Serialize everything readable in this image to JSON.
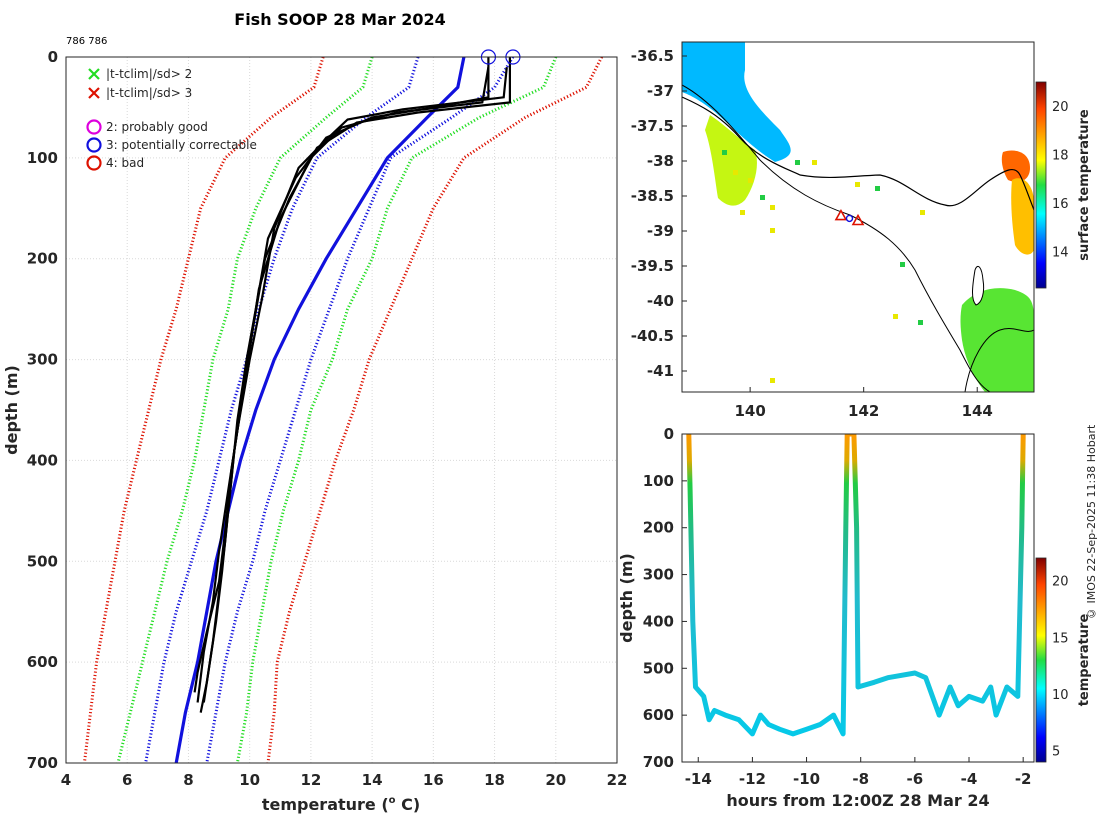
{
  "title": "Fish SOOP 28 Mar 2024",
  "id_label": "786 786",
  "credit": "© IMOS 22-Sep-2025 11:38 Hobart",
  "colors": {
    "green": "#22dd22",
    "red": "#dd1100",
    "blue": "#1111dd",
    "black": "#000000",
    "magenta": "#dd00dd",
    "land_outline": "#000000"
  },
  "chart_data": [
    {
      "type": "line",
      "name": "profile-chart",
      "xlabel": "temperature (",
      "xlabel_sup": "o",
      "xlabel_tail": " C)",
      "ylabel": "depth (m)",
      "xlim": [
        4,
        22
      ],
      "ylim": [
        0,
        700
      ],
      "y_reversed": true,
      "xticks": [
        4,
        6,
        8,
        10,
        12,
        14,
        16,
        18,
        20,
        22
      ],
      "yticks": [
        0,
        100,
        200,
        300,
        400,
        500,
        600,
        700
      ],
      "grid": true,
      "legend_position": "top-left",
      "legend": [
        {
          "marker": "x",
          "color": "#22dd22",
          "label": "|t-tclim|/sd> 2"
        },
        {
          "marker": "x",
          "color": "#dd1100",
          "label": "|t-tclim|/sd> 3"
        },
        {
          "marker": "o",
          "color": "#dd00dd",
          "label": "2: probably good"
        },
        {
          "marker": "o",
          "color": "#1111dd",
          "label": "3: potentially correctable"
        },
        {
          "marker": "o",
          "color": "#dd1100",
          "label": "4: bad"
        }
      ],
      "series": [
        {
          "name": "climatology-mean",
          "style": "solid",
          "color": "#1111dd",
          "points": [
            [
              17.0,
              0
            ],
            [
              16.8,
              30
            ],
            [
              15.8,
              60
            ],
            [
              14.5,
              100
            ],
            [
              13.5,
              150
            ],
            [
              12.5,
              200
            ],
            [
              11.6,
              250
            ],
            [
              10.8,
              300
            ],
            [
              10.2,
              350
            ],
            [
              9.7,
              400
            ],
            [
              9.3,
              450
            ],
            [
              8.9,
              500
            ],
            [
              8.6,
              550
            ],
            [
              8.3,
              600
            ],
            [
              7.9,
              650
            ],
            [
              7.6,
              700
            ]
          ]
        },
        {
          "name": "clim-plus-2sd",
          "style": "dotted",
          "color": "#22dd22",
          "points": [
            [
              20.0,
              0
            ],
            [
              19.6,
              30
            ],
            [
              17.5,
              60
            ],
            [
              15.3,
              100
            ],
            [
              14.5,
              150
            ],
            [
              14.0,
              200
            ],
            [
              13.2,
              250
            ],
            [
              12.7,
              300
            ],
            [
              12.0,
              350
            ],
            [
              11.6,
              400
            ],
            [
              11.1,
              450
            ],
            [
              10.7,
              500
            ],
            [
              10.4,
              550
            ],
            [
              10.1,
              600
            ],
            [
              9.9,
              650
            ],
            [
              9.6,
              700
            ]
          ]
        },
        {
          "name": "clim-minus-2sd",
          "style": "dotted",
          "color": "#22dd22",
          "points": [
            [
              14.0,
              0
            ],
            [
              13.7,
              30
            ],
            [
              12.5,
              60
            ],
            [
              11.0,
              100
            ],
            [
              10.2,
              150
            ],
            [
              9.6,
              200
            ],
            [
              9.3,
              250
            ],
            [
              8.8,
              300
            ],
            [
              8.5,
              350
            ],
            [
              8.2,
              400
            ],
            [
              7.8,
              450
            ],
            [
              7.3,
              500
            ],
            [
              6.9,
              550
            ],
            [
              6.5,
              600
            ],
            [
              6.1,
              650
            ],
            [
              5.7,
              700
            ]
          ]
        },
        {
          "name": "clim-plus-3sd",
          "style": "dotted",
          "color": "#dd1100",
          "points": [
            [
              21.5,
              0
            ],
            [
              21.0,
              30
            ],
            [
              19.0,
              60
            ],
            [
              17.0,
              100
            ],
            [
              16.0,
              150
            ],
            [
              15.3,
              200
            ],
            [
              14.6,
              250
            ],
            [
              13.9,
              300
            ],
            [
              13.4,
              350
            ],
            [
              12.8,
              400
            ],
            [
              12.3,
              450
            ],
            [
              11.8,
              500
            ],
            [
              11.3,
              550
            ],
            [
              10.9,
              600
            ],
            [
              10.8,
              650
            ],
            [
              10.6,
              700
            ]
          ]
        },
        {
          "name": "clim-minus-3sd",
          "style": "dotted",
          "color": "#dd1100",
          "points": [
            [
              12.4,
              0
            ],
            [
              12.1,
              30
            ],
            [
              10.7,
              60
            ],
            [
              9.2,
              100
            ],
            [
              8.4,
              150
            ],
            [
              8.0,
              200
            ],
            [
              7.6,
              250
            ],
            [
              7.1,
              300
            ],
            [
              6.7,
              350
            ],
            [
              6.3,
              400
            ],
            [
              5.9,
              450
            ],
            [
              5.6,
              500
            ],
            [
              5.3,
              550
            ],
            [
              5.0,
              600
            ],
            [
              4.8,
              650
            ],
            [
              4.6,
              700
            ]
          ]
        },
        {
          "name": "clim-plus-1sd",
          "style": "dotted",
          "color": "#1111dd",
          "points": [
            [
              18.6,
              0
            ],
            [
              18.0,
              30
            ],
            [
              16.6,
              60
            ],
            [
              14.6,
              100
            ],
            [
              13.9,
              150
            ],
            [
              13.2,
              200
            ],
            [
              12.6,
              250
            ],
            [
              12.0,
              300
            ],
            [
              11.5,
              350
            ],
            [
              11.0,
              400
            ],
            [
              10.5,
              450
            ],
            [
              10.1,
              500
            ],
            [
              9.6,
              550
            ],
            [
              9.2,
              600
            ],
            [
              8.9,
              650
            ],
            [
              8.6,
              700
            ]
          ]
        },
        {
          "name": "clim-minus-1sd",
          "style": "dotted",
          "color": "#1111dd",
          "points": [
            [
              15.5,
              0
            ],
            [
              15.2,
              30
            ],
            [
              13.8,
              60
            ],
            [
              12.2,
              100
            ],
            [
              11.4,
              150
            ],
            [
              10.8,
              200
            ],
            [
              10.3,
              250
            ],
            [
              9.9,
              300
            ],
            [
              9.4,
              350
            ],
            [
              9.0,
              400
            ],
            [
              8.6,
              450
            ],
            [
              8.1,
              500
            ],
            [
              7.6,
              550
            ],
            [
              7.2,
              600
            ],
            [
              6.9,
              650
            ],
            [
              6.6,
              700
            ]
          ]
        }
      ],
      "profiles": [
        {
          "name": "profile-1",
          "color": "#000000",
          "points": [
            [
              17.8,
              0
            ],
            [
              17.8,
              40
            ],
            [
              16.0,
              50
            ],
            [
              14.0,
              60
            ],
            [
              12.5,
              80
            ],
            [
              11.5,
              120
            ],
            [
              10.6,
              180
            ],
            [
              10.2,
              250
            ],
            [
              9.9,
              300
            ],
            [
              9.6,
              360
            ],
            [
              9.4,
              420
            ],
            [
              9.2,
              480
            ],
            [
              9.0,
              530
            ],
            [
              8.8,
              580
            ],
            [
              8.6,
              620
            ],
            [
              8.4,
              650
            ]
          ]
        },
        {
          "name": "profile-2",
          "color": "#000000",
          "points": [
            [
              18.5,
              0
            ],
            [
              18.5,
              45
            ],
            [
              15.5,
              55
            ],
            [
              13.5,
              65
            ],
            [
              12.2,
              90
            ],
            [
              11.3,
              140
            ],
            [
              10.5,
              200
            ],
            [
              10.1,
              270
            ],
            [
              9.8,
              330
            ],
            [
              9.5,
              390
            ],
            [
              9.3,
              450
            ],
            [
              9.1,
              510
            ],
            [
              8.9,
              560
            ],
            [
              8.7,
              600
            ],
            [
              8.5,
              640
            ]
          ]
        },
        {
          "name": "profile-3",
          "color": "#000000",
          "points": [
            [
              17.8,
              10
            ],
            [
              17.6,
              45
            ],
            [
              14.8,
              55
            ],
            [
              13.0,
              70
            ],
            [
              12.0,
              100
            ],
            [
              11.0,
              160
            ],
            [
              10.3,
              230
            ],
            [
              10.0,
              290
            ],
            [
              9.7,
              350
            ],
            [
              9.4,
              410
            ],
            [
              9.2,
              470
            ],
            [
              9.0,
              520
            ],
            [
              8.6,
              570
            ],
            [
              8.3,
              610
            ],
            [
              8.2,
              630
            ]
          ]
        },
        {
          "name": "profile-4",
          "color": "#000000",
          "points": [
            [
              18.4,
              10
            ],
            [
              18.3,
              40
            ],
            [
              15.0,
              52
            ],
            [
              13.2,
              62
            ],
            [
              12.4,
              85
            ],
            [
              11.6,
              110
            ],
            [
              10.8,
              170
            ],
            [
              10.4,
              240
            ],
            [
              10.0,
              300
            ],
            [
              9.6,
              370
            ],
            [
              9.3,
              430
            ],
            [
              9.0,
              490
            ],
            [
              8.8,
              540
            ],
            [
              8.5,
              590
            ],
            [
              8.3,
              640
            ]
          ]
        }
      ],
      "surface_markers": [
        {
          "x": 17.8,
          "y": 0,
          "color": "#1111dd"
        },
        {
          "x": 18.6,
          "y": 0,
          "color": "#1111dd"
        }
      ]
    },
    {
      "type": "heatmap",
      "name": "map-chart",
      "colorbar_label": "surface temperature",
      "xlim": [
        138.8,
        145.0
      ],
      "ylim": [
        -41.3,
        -36.3
      ],
      "xticks": [
        140,
        142,
        144
      ],
      "yticks": [
        -36.5,
        -37,
        -37.5,
        -38,
        -38.5,
        -39,
        -39.5,
        -40,
        -40.5,
        -41
      ],
      "colorbar_range": [
        12.5,
        21
      ],
      "colorbar_ticks": [
        14,
        16,
        18,
        20
      ],
      "sst_patches": [
        {
          "region": "northwest-coast",
          "temperature": 15.0
        },
        {
          "region": "otway-shelf",
          "temperature": 17.5
        },
        {
          "region": "port-phillip",
          "temperature": 19.5
        },
        {
          "region": "bass-strait-east",
          "temperature": 18.5
        },
        {
          "region": "tasmania-north",
          "temperature": 17.0
        }
      ],
      "track_points": [
        {
          "lon": 141.6,
          "lat": -38.78,
          "marker": "triangle",
          "color": "#dd1100"
        },
        {
          "lon": 141.9,
          "lat": -38.85,
          "marker": "triangle",
          "color": "#dd1100"
        },
        {
          "lon": 141.75,
          "lat": -38.82,
          "marker": "circle",
          "color": "#1111dd"
        }
      ]
    },
    {
      "type": "line",
      "name": "timeseries-chart",
      "xlabel": "hours from 12:00Z 28 Mar 24",
      "ylabel": "depth (m)",
      "colorbar_label": "temperature",
      "xlim": [
        -14.6,
        -1.6
      ],
      "ylim": [
        0,
        700
      ],
      "y_reversed": true,
      "xticks": [
        -14,
        -12,
        -10,
        -8,
        -6,
        -4,
        -2
      ],
      "yticks": [
        0,
        100,
        200,
        300,
        400,
        500,
        600,
        700
      ],
      "colorbar_range": [
        4,
        22
      ],
      "colorbar_ticks": [
        5,
        10,
        15,
        20
      ],
      "track": [
        [
          -14.35,
          0
        ],
        [
          -14.3,
          120
        ],
        [
          -14.2,
          400
        ],
        [
          -14.1,
          540
        ],
        [
          -13.8,
          560
        ],
        [
          -13.6,
          610
        ],
        [
          -13.4,
          590
        ],
        [
          -13.0,
          600
        ],
        [
          -12.5,
          610
        ],
        [
          -12.0,
          640
        ],
        [
          -11.7,
          600
        ],
        [
          -11.4,
          620
        ],
        [
          -11.0,
          630
        ],
        [
          -10.5,
          640
        ],
        [
          -10.0,
          630
        ],
        [
          -9.5,
          620
        ],
        [
          -9.0,
          600
        ],
        [
          -8.65,
          640
        ],
        [
          -8.55,
          200
        ],
        [
          -8.5,
          0
        ],
        [
          -8.25,
          0
        ],
        [
          -8.15,
          200
        ],
        [
          -8.1,
          540
        ],
        [
          -7.5,
          530
        ],
        [
          -7.0,
          520
        ],
        [
          -6.0,
          510
        ],
        [
          -5.6,
          520
        ],
        [
          -5.1,
          600
        ],
        [
          -4.7,
          540
        ],
        [
          -4.4,
          580
        ],
        [
          -4.0,
          560
        ],
        [
          -3.5,
          570
        ],
        [
          -3.2,
          540
        ],
        [
          -3.0,
          600
        ],
        [
          -2.6,
          540
        ],
        [
          -2.2,
          560
        ],
        [
          -2.05,
          200
        ],
        [
          -2.0,
          0
        ]
      ]
    }
  ]
}
